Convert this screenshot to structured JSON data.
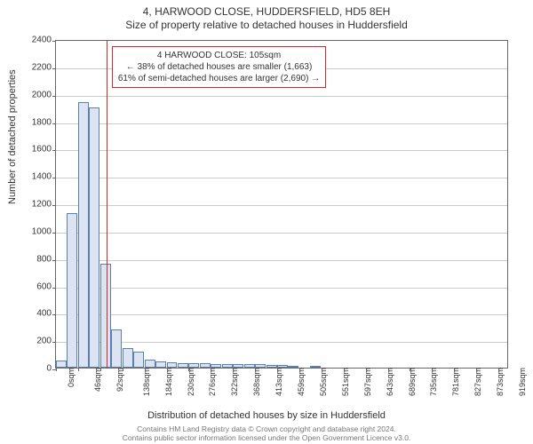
{
  "title": {
    "line1": "4, HARWOOD CLOSE, HUDDERSFIELD, HD5 8EH",
    "line2": "Size of property relative to detached houses in Huddersfield"
  },
  "ylabel": "Number of detached properties",
  "xlabel": "Distribution of detached houses by size in Huddersfield",
  "chart": {
    "type": "histogram",
    "ylim": [
      0,
      2400
    ],
    "ytick_step": 200,
    "bar_fill": "#dbe4f0",
    "bar_border": "#5b7fb0",
    "grid_color": "#cccccc",
    "background_color": "#ffffff",
    "marker_color": "#d62728",
    "marker_x": 105,
    "xticks": [
      "0sqm",
      "46sqm",
      "92sqm",
      "138sqm",
      "184sqm",
      "230sqm",
      "276sqm",
      "322sqm",
      "368sqm",
      "413sqm",
      "459sqm",
      "505sqm",
      "551sqm",
      "597sqm",
      "643sqm",
      "689sqm",
      "735sqm",
      "781sqm",
      "827sqm",
      "873sqm",
      "919sqm"
    ],
    "bar_width_sqm": 23,
    "x_max": 942,
    "bars": [
      50,
      1130,
      1940,
      1900,
      760,
      280,
      140,
      120,
      60,
      45,
      40,
      35,
      30,
      30,
      28,
      25,
      27,
      25,
      24,
      22,
      20,
      10,
      0,
      2,
      0,
      0,
      0,
      0,
      0,
      0,
      0,
      0,
      0,
      0,
      0,
      0,
      0,
      0,
      0,
      0,
      0
    ]
  },
  "info_box": {
    "line1": "4 HARWOOD CLOSE: 105sqm",
    "line2": "← 38% of detached houses are smaller (1,663)",
    "line3": "61% of semi-detached houses are larger (2,690) →"
  },
  "footer": {
    "line1": "Contains HM Land Registry data © Crown copyright and database right 2024.",
    "line2": "Contains public sector information licensed under the Open Government Licence v3.0."
  }
}
